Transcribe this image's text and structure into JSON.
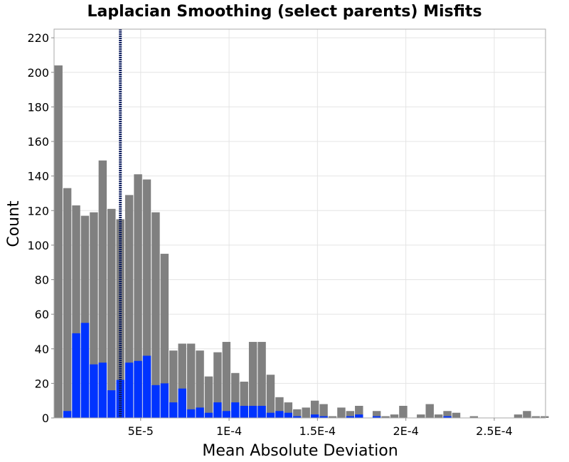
{
  "chart_data": {
    "type": "bar",
    "title": "Laplacian Smoothing (select parents) Misfits",
    "xlabel": "Mean Absolute Deviation",
    "ylabel": "Count",
    "xlim": [
      1e-06,
      0.000279
    ],
    "ylim": [
      0,
      225
    ],
    "bin_width": 5e-06,
    "bin_start": 1e-06,
    "x_ticks": [
      {
        "value": 5e-05,
        "label": "5E-5"
      },
      {
        "value": 0.0001,
        "label": "1E-4"
      },
      {
        "value": 0.00015,
        "label": "1.5E-4"
      },
      {
        "value": 0.0002,
        "label": "2E-4"
      },
      {
        "value": 0.00025,
        "label": "2.5E-4"
      }
    ],
    "y_ticks": [
      0,
      20,
      40,
      60,
      80,
      100,
      120,
      140,
      160,
      180,
      200,
      220
    ],
    "y_tick_labels": [
      "0",
      "20",
      "40",
      "60",
      "80",
      "100",
      "120",
      "140",
      "160",
      "180",
      "200",
      "220"
    ],
    "grid": true,
    "series": [
      {
        "color": "#808080",
        "values": [
          204,
          133,
          123,
          117,
          119,
          149,
          121,
          115,
          129,
          141,
          138,
          119,
          95,
          39,
          43,
          43,
          39,
          24,
          38,
          44,
          26,
          21,
          44,
          44,
          25,
          12,
          9,
          5,
          6,
          10,
          8,
          1,
          6,
          4,
          7,
          0,
          4,
          1,
          2,
          7,
          0,
          2,
          8,
          2,
          4,
          3,
          0,
          1,
          0,
          0,
          0,
          0,
          2,
          4,
          1,
          1
        ]
      },
      {
        "color": "#0033ff",
        "values": [
          0,
          4,
          49,
          55,
          31,
          32,
          16,
          22,
          32,
          33,
          36,
          19,
          20,
          9,
          17,
          5,
          6,
          3,
          9,
          4,
          9,
          7,
          7,
          7,
          3,
          4,
          3,
          1,
          0,
          2,
          1,
          0,
          0,
          1,
          2,
          0,
          1,
          0,
          0,
          0,
          0,
          0,
          0,
          0,
          1,
          0,
          0,
          0,
          0,
          0,
          0,
          0,
          0,
          0,
          0,
          0
        ]
      }
    ],
    "reference_line": {
      "x": 3.85e-05,
      "color": "#102060",
      "style": "dotted"
    }
  }
}
